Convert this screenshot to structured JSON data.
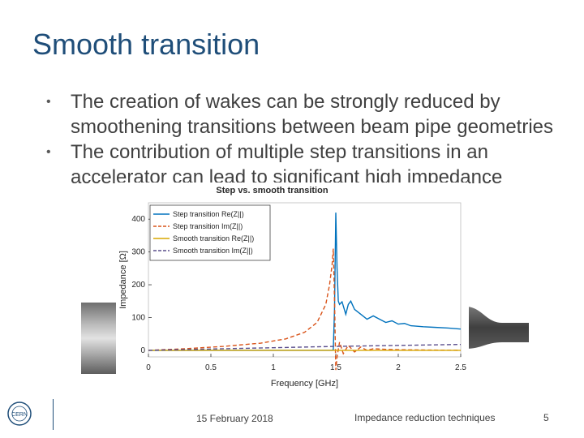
{
  "slide": {
    "title": "Smooth transition",
    "bullets": [
      "The creation of wakes can be strongly reduced by smoothening transitions between beam pipe geometries",
      "The contribution of multiple step transitions in an accelerator can lead to significant high impedance"
    ],
    "footer": {
      "date": "15 February 2018",
      "topic": "Impedance reduction techniques",
      "page": "5"
    },
    "logo_text": "CERN"
  },
  "chart_data": {
    "type": "line",
    "title": "Step vs. smooth transition",
    "xlabel": "Frequency [GHz]",
    "ylabel": "Impedance [Ω]",
    "xlim": [
      0,
      2.5
    ],
    "ylim": [
      -20,
      450
    ],
    "xticks": [
      "0",
      "0.5",
      "1",
      "1.5",
      "2",
      "2.5"
    ],
    "yticks": [
      "0",
      "100",
      "200",
      "300",
      "400"
    ],
    "grid": false,
    "legend_position": "top-left",
    "series": [
      {
        "name": "Step transition Re(Z||)",
        "color": "#0072bd",
        "dash": "solid",
        "x": [
          0,
          0.5,
          1.0,
          1.4,
          1.46,
          1.47,
          1.48,
          1.49,
          1.5,
          1.51,
          1.52,
          1.53,
          1.55,
          1.58,
          1.6,
          1.62,
          1.65,
          1.7,
          1.75,
          1.8,
          1.85,
          1.9,
          1.95,
          2.0,
          2.05,
          2.1,
          2.2,
          2.3,
          2.4,
          2.5
        ],
        "y": [
          0,
          0,
          0,
          0,
          0,
          0,
          2,
          130,
          420,
          250,
          150,
          140,
          148,
          110,
          140,
          150,
          125,
          110,
          95,
          105,
          95,
          85,
          90,
          80,
          82,
          75,
          72,
          70,
          68,
          65
        ]
      },
      {
        "name": "Step transition Im(Z||)",
        "color": "#d95319",
        "dash": "dashed",
        "x": [
          0,
          0.3,
          0.6,
          0.9,
          1.1,
          1.25,
          1.35,
          1.42,
          1.45,
          1.47,
          1.48,
          1.49,
          1.5,
          1.51,
          1.53,
          1.56,
          1.6,
          1.65,
          1.7,
          1.75,
          1.8,
          1.9,
          2.0,
          2.2,
          2.5
        ],
        "y": [
          0,
          5,
          12,
          22,
          35,
          55,
          85,
          140,
          200,
          260,
          310,
          150,
          -60,
          -20,
          25,
          -10,
          15,
          -5,
          10,
          0,
          5,
          3,
          2,
          1,
          0
        ]
      },
      {
        "name": "Smooth transition Re(Z||)",
        "color": "#d8a700",
        "dash": "solid",
        "x": [
          0,
          0.5,
          1.0,
          1.5,
          2.0,
          2.5
        ],
        "y": [
          0,
          0,
          0,
          0,
          0,
          0
        ]
      },
      {
        "name": "Smooth transition Im(Z||)",
        "color": "#5a4e8c",
        "dash": "dashed",
        "x": [
          0,
          0.5,
          1.0,
          1.5,
          2.0,
          2.5
        ],
        "y": [
          0,
          4,
          8,
          12,
          15,
          18
        ]
      }
    ]
  }
}
